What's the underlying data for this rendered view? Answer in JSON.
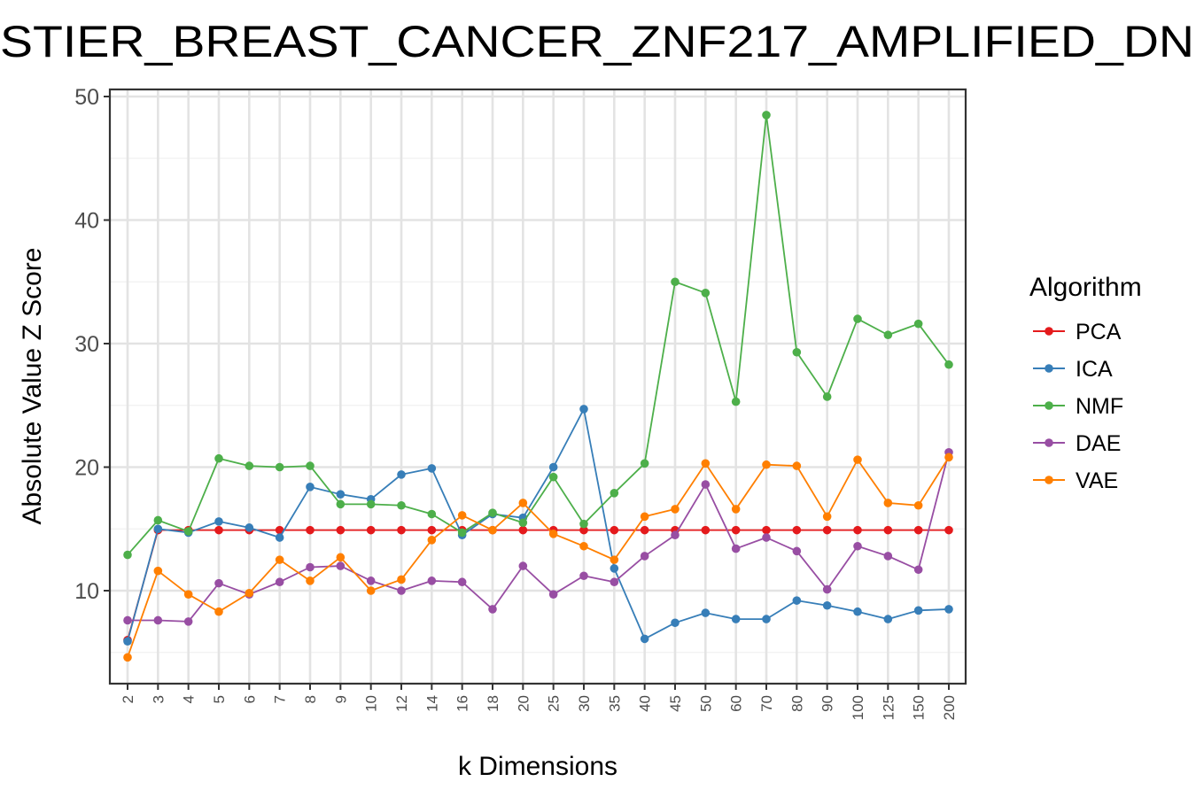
{
  "chart_data": {
    "type": "line",
    "title": "STIER_BREAST_CANCER_ZNF217_AMPLIFIED_DN",
    "xlabel": "k Dimensions",
    "ylabel": "Absolute Value Z Score",
    "categories": [
      "2",
      "3",
      "4",
      "5",
      "6",
      "7",
      "8",
      "9",
      "10",
      "12",
      "14",
      "16",
      "18",
      "20",
      "25",
      "30",
      "35",
      "40",
      "45",
      "50",
      "60",
      "70",
      "80",
      "90",
      "100",
      "125",
      "150",
      "200"
    ],
    "y_ticks": [
      10,
      20,
      30,
      40,
      50
    ],
    "ylim": [
      3.8,
      50.4
    ],
    "grid": true,
    "legend": {
      "title": "Algorithm",
      "position": "right"
    },
    "series": [
      {
        "name": "PCA",
        "color": "#E41A1C",
        "values": [
          6.0,
          14.9,
          14.9,
          14.9,
          14.9,
          14.9,
          14.9,
          14.9,
          14.9,
          14.9,
          14.9,
          14.9,
          14.9,
          14.9,
          14.9,
          14.9,
          14.9,
          14.9,
          14.9,
          14.9,
          14.9,
          14.9,
          14.9,
          14.9,
          14.9,
          14.9,
          14.9,
          14.9
        ]
      },
      {
        "name": "ICA",
        "color": "#377EB8",
        "values": [
          5.9,
          15.0,
          14.7,
          15.6,
          15.1,
          14.3,
          18.4,
          17.8,
          17.4,
          19.4,
          19.9,
          14.5,
          16.2,
          15.9,
          20.0,
          24.7,
          11.8,
          6.1,
          7.4,
          8.2,
          7.7,
          7.7,
          9.2,
          8.8,
          8.3,
          7.7,
          8.4,
          8.5
        ]
      },
      {
        "name": "NMF",
        "color": "#4DAF4A",
        "values": [
          12.9,
          15.7,
          14.8,
          20.7,
          20.1,
          20.0,
          20.1,
          17.0,
          17.0,
          16.9,
          16.2,
          14.7,
          16.3,
          15.5,
          19.2,
          15.4,
          17.9,
          20.3,
          35.0,
          34.1,
          25.3,
          48.5,
          29.3,
          25.7,
          32.0,
          30.7,
          31.6,
          28.3
        ]
      },
      {
        "name": "DAE",
        "color": "#984EA3",
        "values": [
          7.6,
          7.6,
          7.5,
          10.6,
          9.7,
          10.7,
          11.9,
          12.0,
          10.8,
          10.0,
          10.8,
          10.7,
          8.5,
          12.0,
          9.7,
          11.2,
          10.7,
          12.8,
          14.5,
          18.6,
          13.4,
          14.3,
          13.2,
          10.1,
          13.6,
          12.8,
          11.7,
          21.2
        ]
      },
      {
        "name": "VAE",
        "color": "#FF7F00",
        "values": [
          4.6,
          11.6,
          9.7,
          8.3,
          9.8,
          12.5,
          10.8,
          12.7,
          10.0,
          10.9,
          14.1,
          16.1,
          14.9,
          17.1,
          14.6,
          13.6,
          12.5,
          16.0,
          16.6,
          20.3,
          16.6,
          20.2,
          20.1,
          16.0,
          20.6,
          17.1,
          16.9,
          20.8
        ]
      }
    ]
  }
}
